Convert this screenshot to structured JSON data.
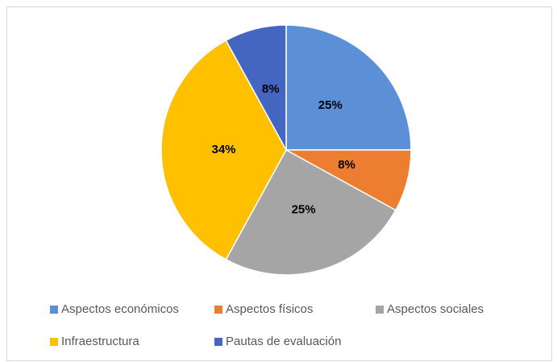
{
  "chart_data": {
    "type": "pie",
    "categories": [
      "Aspectos económicos",
      "Aspectos físicos",
      "Aspectos sociales",
      "Infraestructura",
      "Pautas de evaluación"
    ],
    "values": [
      25,
      8,
      25,
      34,
      8
    ],
    "value_labels": [
      "25%",
      "8%",
      "25%",
      "34%",
      "8%"
    ],
    "colors": [
      "#5b8fd6",
      "#ed7d31",
      "#a5a5a5",
      "#ffc000",
      "#4466c0"
    ],
    "legend": "bottom"
  }
}
